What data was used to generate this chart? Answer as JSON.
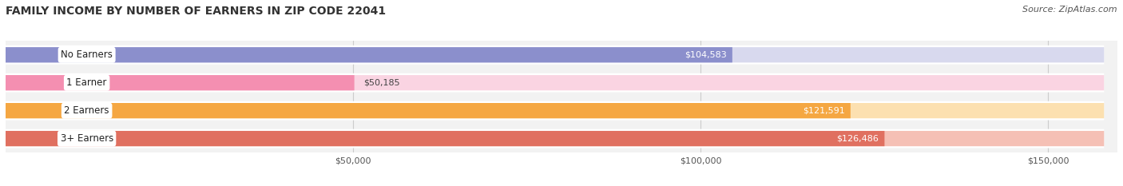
{
  "title": "FAMILY INCOME BY NUMBER OF EARNERS IN ZIP CODE 22041",
  "source": "Source: ZipAtlas.com",
  "categories": [
    "No Earners",
    "1 Earner",
    "2 Earners",
    "3+ Earners"
  ],
  "values": [
    104583,
    50185,
    121591,
    126486
  ],
  "bar_colors": [
    "#8b8fcc",
    "#f48fb1",
    "#f5a742",
    "#e07060"
  ],
  "bar_bg_colors": [
    "#d8d9ee",
    "#fad4e2",
    "#fce0b0",
    "#f5c0b5"
  ],
  "value_labels": [
    "$104,583",
    "$50,185",
    "$121,591",
    "$126,486"
  ],
  "value_label_inside": [
    true,
    false,
    true,
    true
  ],
  "xlim": [
    0,
    160000
  ],
  "xticks": [
    50000,
    100000,
    150000
  ],
  "xtick_labels": [
    "$50,000",
    "$100,000",
    "$150,000"
  ],
  "background_color": "#ffffff",
  "plot_bg_color": "#f2f2f2",
  "bar_height": 0.55,
  "figsize": [
    14.06,
    2.33
  ],
  "dpi": 100,
  "title_fontsize": 10,
  "source_fontsize": 8,
  "label_fontsize": 8.5,
  "value_fontsize": 8
}
